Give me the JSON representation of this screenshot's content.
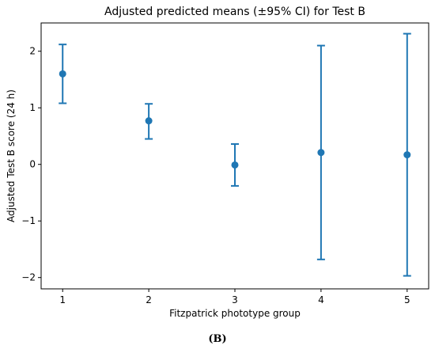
{
  "chart_data": {
    "type": "scatter",
    "title": "Adjusted predicted means (±95% CI) for Test B",
    "xlabel": "Fitzpatrick phototype group",
    "ylabel": "Adjusted Test B score (24 h)",
    "xlim": [
      0.75,
      5.25
    ],
    "ylim": [
      -2.2,
      2.5
    ],
    "x_ticks": [
      1,
      2,
      3,
      4,
      5
    ],
    "x_tick_labels": [
      "1",
      "2",
      "3",
      "4",
      "5"
    ],
    "y_ticks": [
      -2,
      -1,
      0,
      1,
      2
    ],
    "y_tick_labels": [
      "−2",
      "−1",
      "0",
      "1",
      "2"
    ],
    "grid": false,
    "color": "#1f77b4",
    "points": [
      {
        "x": 1,
        "mean": 1.6,
        "lower": 1.08,
        "upper": 2.12
      },
      {
        "x": 2,
        "mean": 0.77,
        "lower": 0.45,
        "upper": 1.07
      },
      {
        "x": 3,
        "mean": -0.01,
        "lower": -0.38,
        "upper": 0.36
      },
      {
        "x": 4,
        "mean": 0.21,
        "lower": -1.68,
        "upper": 2.1
      },
      {
        "x": 5,
        "mean": 0.17,
        "lower": -1.97,
        "upper": 2.31
      }
    ]
  },
  "caption": "(B)"
}
